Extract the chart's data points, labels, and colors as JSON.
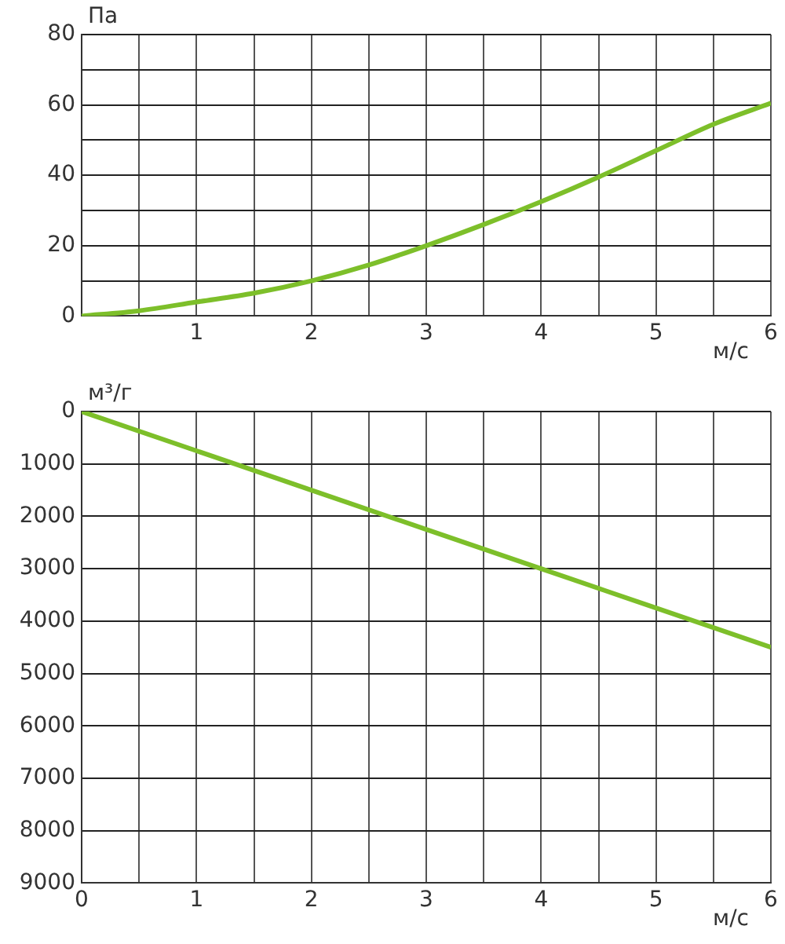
{
  "chart_data": [
    {
      "type": "line",
      "ylabel": "Па",
      "xlabel": "м/с",
      "x": [
        0,
        0.5,
        1,
        1.5,
        2,
        2.5,
        3,
        3.5,
        4,
        4.5,
        5,
        5.5,
        6
      ],
      "series": [
        {
          "color": "#7dbf2a",
          "values": [
            0,
            1.5,
            4,
            6.5,
            10,
            14.5,
            20,
            26,
            32.5,
            39.5,
            47,
            54.5,
            60.5
          ]
        }
      ],
      "xlim": [
        0,
        6
      ],
      "xticks": [
        {
          "value": 0,
          "label": null
        },
        {
          "value": 0.5,
          "label": null
        },
        1,
        {
          "value": 1.5,
          "label": null
        },
        2,
        {
          "value": 2.5,
          "label": null
        },
        3,
        {
          "value": 3.5,
          "label": null
        },
        4,
        {
          "value": 4.5,
          "label": null
        },
        5,
        {
          "value": 5.5,
          "label": null
        },
        6
      ],
      "ylim": [
        0,
        80
      ],
      "yticks": [
        0,
        {
          "value": 10,
          "label": null
        },
        20,
        {
          "value": 30,
          "label": null
        },
        40,
        {
          "value": 50,
          "label": null
        },
        60,
        {
          "value": 70,
          "label": null
        },
        80
      ],
      "grid": true,
      "legend": false,
      "marker": "none",
      "line_style": "solid"
    },
    {
      "type": "line",
      "ylabel": "м³/г",
      "xlabel": "м/с",
      "x": [
        0,
        1,
        2,
        3,
        4,
        5,
        6
      ],
      "series": [
        {
          "color": "#7dbf2a",
          "values": [
            0,
            750,
            1500,
            2250,
            3000,
            3750,
            4500
          ]
        }
      ],
      "xlim": [
        0,
        6
      ],
      "xticks": [
        0,
        {
          "value": 0.5,
          "label": null
        },
        1,
        {
          "value": 1.5,
          "label": null
        },
        2,
        {
          "value": 2.5,
          "label": null
        },
        3,
        {
          "value": 3.5,
          "label": null
        },
        4,
        {
          "value": 4.5,
          "label": null
        },
        5,
        {
          "value": 5.5,
          "label": null
        },
        6
      ],
      "ylim": [
        9000,
        0
      ],
      "yticks": [
        0,
        1000,
        2000,
        3000,
        4000,
        5000,
        6000,
        7000,
        8000,
        9000
      ],
      "grid": true,
      "legend": false,
      "marker": "none",
      "line_style": "solid"
    }
  ]
}
